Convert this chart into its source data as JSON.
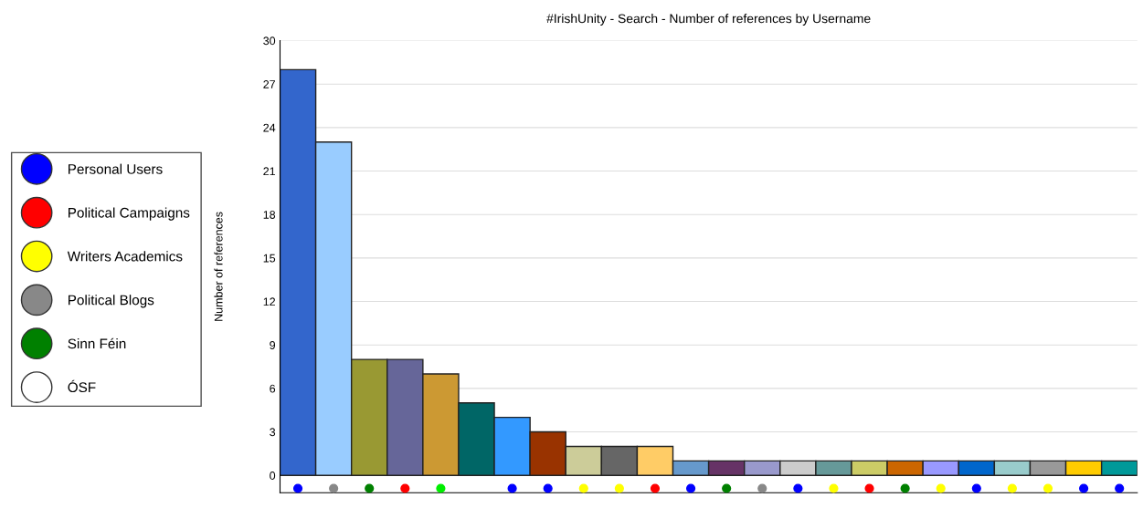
{
  "chart_data": {
    "type": "bar",
    "title": "#IrishUnity - Search - Number of references by Username",
    "ylabel": "Number of references",
    "categories": [
      null,
      null,
      null,
      null,
      null,
      null,
      null,
      null,
      null,
      null,
      null,
      null,
      null,
      null,
      null,
      null,
      null,
      null,
      null,
      null,
      null,
      null,
      null,
      null
    ],
    "series": [
      {
        "values": [
          28,
          23,
          8,
          8,
          7,
          5,
          4,
          3,
          2,
          2,
          2,
          1,
          1,
          1,
          1,
          1,
          1,
          1,
          1,
          1,
          1,
          1,
          1,
          1
        ],
        "colors": [
          "#3366cc",
          "#99ccff",
          "#999933",
          "#666699",
          "#cc9933",
          "#006666",
          "#3399ff",
          "#993300",
          "#cccc99",
          "#666666",
          "#ffcc66",
          "#6699cc",
          "#663366",
          "#9999cc",
          "#cccccc",
          "#669999",
          "#cccc66",
          "#cc6600",
          "#9999ff",
          "#0066cc",
          "#99cccc",
          "#999999",
          "#ffcc00",
          "#009999"
        ]
      },
      {
        "type": "scatter",
        "name": "Personal Users",
        "color": "#0000ff",
        "values": [
          -0.9,
          null,
          null,
          null,
          null,
          null,
          -0.9,
          -0.9,
          null,
          null,
          null,
          -0.9,
          null,
          null,
          -0.9,
          null,
          null,
          null,
          null,
          -0.9,
          null,
          null,
          -0.9,
          -0.9
        ]
      },
      {
        "type": "scatter",
        "name": "Political Campaigns",
        "color": "#ff0000",
        "values": [
          null,
          null,
          null,
          -0.9,
          null,
          null,
          null,
          null,
          null,
          null,
          -0.9,
          null,
          null,
          null,
          null,
          null,
          -0.9,
          null,
          null,
          null,
          null,
          null,
          null,
          null
        ]
      },
      {
        "type": "scatter",
        "name": "Writers Academics",
        "color": "#ffff00",
        "values": [
          null,
          null,
          null,
          null,
          null,
          null,
          null,
          null,
          -0.9,
          -0.9,
          null,
          null,
          null,
          null,
          null,
          -0.9,
          null,
          null,
          -0.9,
          null,
          -0.9,
          -0.9,
          null,
          null
        ]
      },
      {
        "type": "scatter",
        "name": "Political Blogs",
        "color": "#888888",
        "values": [
          null,
          -0.9,
          null,
          null,
          null,
          null,
          null,
          null,
          null,
          null,
          null,
          null,
          null,
          -0.9,
          null,
          null,
          null,
          null,
          null,
          null,
          null,
          null,
          null,
          null
        ]
      },
      {
        "type": "scatter",
        "name": "Sinn Féin",
        "color": "#008000",
        "values": [
          null,
          null,
          -0.9,
          null,
          null,
          null,
          null,
          null,
          null,
          null,
          null,
          null,
          -0.9,
          null,
          null,
          null,
          null,
          -0.9,
          null,
          null,
          null,
          null,
          null,
          null
        ]
      },
      {
        "type": "scatter",
        "name": "ÓSF",
        "color": "#ffffff",
        "values": [
          null,
          null,
          null,
          null,
          null,
          null,
          null,
          null,
          null,
          null,
          null,
          null,
          null,
          null,
          null,
          null,
          null,
          null,
          null,
          null,
          null,
          null,
          null,
          null
        ]
      },
      {
        "type": "scatter",
        "color": "#00ee00",
        "values": [
          null,
          null,
          null,
          null,
          -0.9,
          null,
          null,
          null,
          null,
          null,
          null,
          null,
          null,
          null,
          null,
          null,
          null,
          null,
          null,
          null,
          null,
          null,
          null,
          null
        ]
      }
    ],
    "ylim": [
      -1.2,
      30
    ],
    "yticks": [
      0,
      3,
      6,
      9,
      12,
      15,
      18,
      21,
      24,
      27,
      30
    ],
    "grid": "y",
    "legend": "left",
    "marker": "circle"
  }
}
